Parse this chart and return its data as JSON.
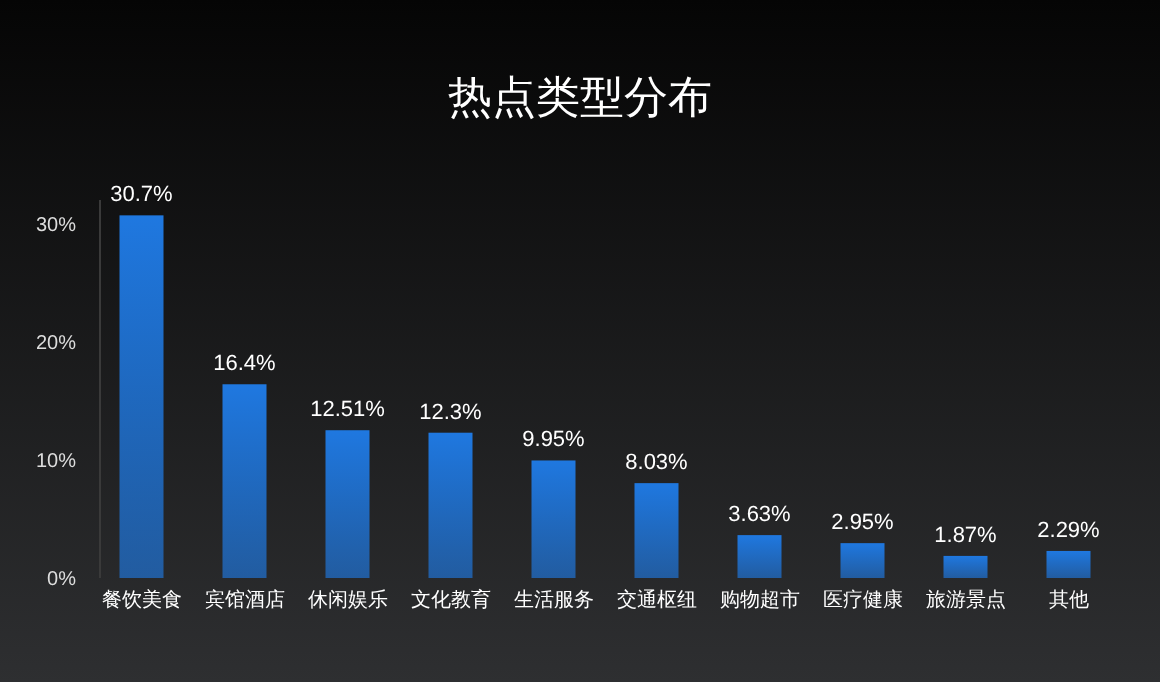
{
  "chart_data": {
    "type": "bar",
    "title": "热点类型分布",
    "categories": [
      "餐饮美食",
      "宾馆酒店",
      "休闲娱乐",
      "文化教育",
      "生活服务",
      "交通枢纽",
      "购物超市",
      "医疗健康",
      "旅游景点",
      "其他"
    ],
    "values": [
      30.7,
      16.4,
      12.51,
      12.3,
      9.95,
      8.03,
      3.63,
      2.95,
      1.87,
      2.29
    ],
    "value_labels": [
      "30.7%",
      "16.4%",
      "12.51%",
      "12.3%",
      "9.95%",
      "8.03%",
      "3.63%",
      "2.95%",
      "1.87%",
      "2.29%"
    ],
    "color": "#1f78e0",
    "ylim": [
      0,
      32
    ],
    "yticks": [
      {
        "value": 0,
        "label": "0%"
      },
      {
        "value": 10,
        "label": "10%"
      },
      {
        "value": 20,
        "label": "20%"
      },
      {
        "value": 30,
        "label": "30%"
      }
    ]
  }
}
